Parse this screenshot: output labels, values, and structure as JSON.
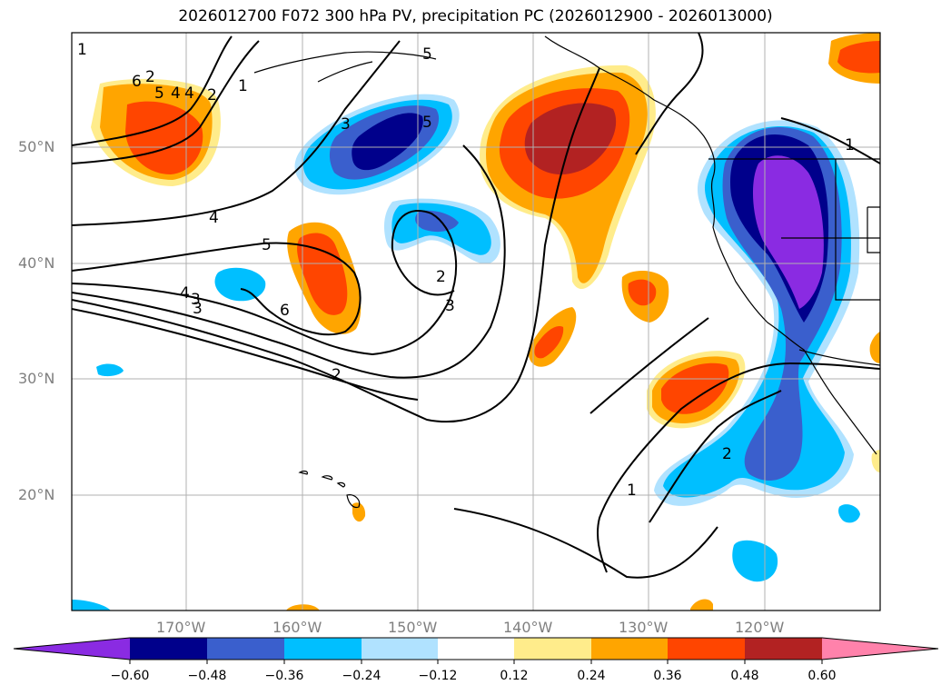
{
  "title": "2026012700 F072 300 hPa PV, precipitation PC (2026012900 - 2026013000)",
  "map": {
    "lat_ticks": [
      "50°N",
      "40°N",
      "30°N",
      "20°N"
    ],
    "lon_ticks": [
      "170°W",
      "160°W",
      "150°W",
      "140°W",
      "130°W",
      "120°W"
    ],
    "contour_labels": [
      "1",
      "2",
      "3",
      "4",
      "5",
      "6",
      "5",
      "4",
      "2",
      "1",
      "3",
      "5",
      "4",
      "5",
      "4",
      "3",
      "6",
      "2",
      "3",
      "2",
      "1",
      "2",
      "1"
    ]
  },
  "colorbar": {
    "colors": [
      "#8a2be2",
      "#00008b",
      "#3a5fcd",
      "#00bfff",
      "#b0e2ff",
      "#ffffff",
      "#ffec8b",
      "#ffa500",
      "#ff4500",
      "#b22222",
      "#ff82ab"
    ],
    "tick_labels": [
      "−0.60",
      "−0.48",
      "−0.36",
      "−0.24",
      "−0.12",
      "0.12",
      "0.24",
      "0.36",
      "0.48",
      "0.60"
    ]
  }
}
